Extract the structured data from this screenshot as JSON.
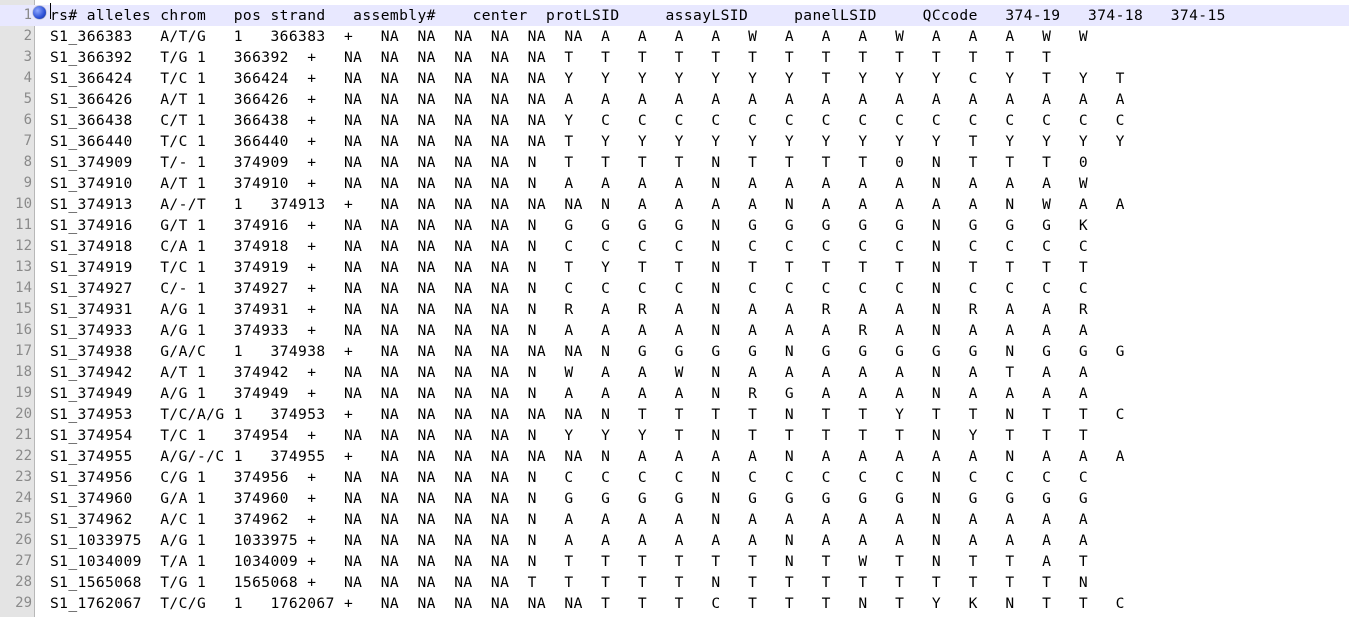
{
  "editor": {
    "lines": [
      {
        "n": "1",
        "text": "rs# alleles chrom   pos strand   assembly#    center  protLSID     assayLSID     panelLSID     QCcode   374-19   374-18   374-15"
      },
      {
        "n": "2",
        "text": "S1_366383   A/T/G   1   366383  +   NA  NA  NA  NA  NA  NA  A   A   A   A   W   A   A   A   W   A   A   A   W   W"
      },
      {
        "n": "3",
        "text": "S1_366392   T/G 1   366392  +   NA  NA  NA  NA  NA  NA  T   T   T   T   T   T   T   T   T   T   T   T   T   T"
      },
      {
        "n": "4",
        "text": "S1_366424   T/C 1   366424  +   NA  NA  NA  NA  NA  NA  Y   Y   Y   Y   Y   Y   Y   T   Y   Y   Y   C   Y   T   Y   T"
      },
      {
        "n": "5",
        "text": "S1_366426   A/T 1   366426  +   NA  NA  NA  NA  NA  NA  A   A   A   A   A   A   A   A   A   A   A   A   A   A   A   A"
      },
      {
        "n": "6",
        "text": "S1_366438   C/T 1   366438  +   NA  NA  NA  NA  NA  NA  Y   C   C   C   C   C   C   C   C   C   C   C   C   C   C   C"
      },
      {
        "n": "7",
        "text": "S1_366440   T/C 1   366440  +   NA  NA  NA  NA  NA  NA  T   Y   Y   Y   Y   Y   Y   Y   Y   Y   Y   T   Y   Y   Y   Y"
      },
      {
        "n": "8",
        "text": "S1_374909   T/- 1   374909  +   NA  NA  NA  NA  NA  N   T   T   T   T   N   T   T   T   T   0   N   T   T   T   0"
      },
      {
        "n": "9",
        "text": "S1_374910   A/T 1   374910  +   NA  NA  NA  NA  NA  N   A   A   A   A   N   A   A   A   A   A   N   A   A   A   W"
      },
      {
        "n": "10",
        "text": "S1_374913   A/-/T   1   374913  +   NA  NA  NA  NA  NA  NA  N   A   A   A   A   N   A   A   A   A   A   N   W   A   A"
      },
      {
        "n": "11",
        "text": "S1_374916   G/T 1   374916  +   NA  NA  NA  NA  NA  N   G   G   G   G   N   G   G   G   G   G   N   G   G   G   K"
      },
      {
        "n": "12",
        "text": "S1_374918   C/A 1   374918  +   NA  NA  NA  NA  NA  N   C   C   C   C   N   C   C   C   C   C   N   C   C   C   C"
      },
      {
        "n": "13",
        "text": "S1_374919   T/C 1   374919  +   NA  NA  NA  NA  NA  N   T   Y   T   T   N   T   T   T   T   T   N   T   T   T   T"
      },
      {
        "n": "14",
        "text": "S1_374927   C/- 1   374927  +   NA  NA  NA  NA  NA  N   C   C   C   C   N   C   C   C   C   C   N   C   C   C   C"
      },
      {
        "n": "15",
        "text": "S1_374931   A/G 1   374931  +   NA  NA  NA  NA  NA  N   R   A   R   A   N   A   A   R   A   A   N   R   A   A   R"
      },
      {
        "n": "16",
        "text": "S1_374933   A/G 1   374933  +   NA  NA  NA  NA  NA  N   A   A   A   A   N   A   A   A   R   A   N   A   A   A   A"
      },
      {
        "n": "17",
        "text": "S1_374938   G/A/C   1   374938  +   NA  NA  NA  NA  NA  NA  N   G   G   G   G   N   G   G   G   G   G   N   G   G   G"
      },
      {
        "n": "18",
        "text": "S1_374942   A/T 1   374942  +   NA  NA  NA  NA  NA  N   W   A   A   W   N   A   A   A   A   A   N   A   T   A   A"
      },
      {
        "n": "19",
        "text": "S1_374949   A/G 1   374949  +   NA  NA  NA  NA  NA  N   A   A   A   A   N   R   G   A   A   A   N   A   A   A   A"
      },
      {
        "n": "20",
        "text": "S1_374953   T/C/A/G 1   374953  +   NA  NA  NA  NA  NA  NA  N   T   T   T   T   N   T   T   Y   T   T   N   T   T   C"
      },
      {
        "n": "21",
        "text": "S1_374954   T/C 1   374954  +   NA  NA  NA  NA  NA  N   Y   Y   Y   T   N   T   T   T   T   T   N   Y   T   T   T"
      },
      {
        "n": "22",
        "text": "S1_374955   A/G/-/C 1   374955  +   NA  NA  NA  NA  NA  NA  N   A   A   A   A   N   A   A   A   A   A   N   A   A   A"
      },
      {
        "n": "23",
        "text": "S1_374956   C/G 1   374956  +   NA  NA  NA  NA  NA  N   C   C   C   C   N   C   C   C   C   C   N   C   C   C   C"
      },
      {
        "n": "24",
        "text": "S1_374960   G/A 1   374960  +   NA  NA  NA  NA  NA  N   G   G   G   G   N   G   G   G   G   G   N   G   G   G   G"
      },
      {
        "n": "25",
        "text": "S1_374962   A/C 1   374962  +   NA  NA  NA  NA  NA  N   A   A   A   A   N   A   A   A   A   A   N   A   A   A   A"
      },
      {
        "n": "26",
        "text": "S1_1033975  A/G 1   1033975 +   NA  NA  NA  NA  NA  N   A   A   A   A   A   A   N   A   A   A   N   A   A   A   A"
      },
      {
        "n": "27",
        "text": "S1_1034009  T/A 1   1034009 +   NA  NA  NA  NA  NA  N   T   T   T   T   T   T   N   T   W   T   N   T   T   A   T"
      },
      {
        "n": "28",
        "text": "S1_1565068  T/G 1   1565068 +   NA  NA  NA  NA  NA  T   T   T   T   T   N   T   T   T   T   T   T   T   T   T   N"
      },
      {
        "n": "29",
        "text": "S1_1762067  T/C/G   1   1762067 +   NA  NA  NA  NA  NA  NA  T   T   T   C   T   T   T   N   T   Y   K   N   T   T   C"
      }
    ]
  }
}
